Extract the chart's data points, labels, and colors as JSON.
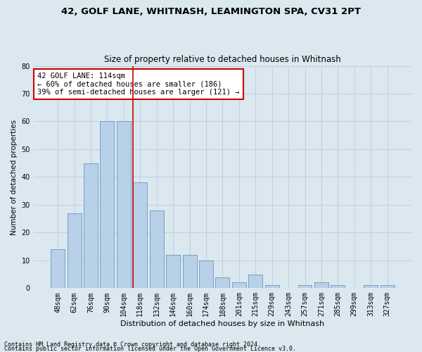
{
  "title1": "42, GOLF LANE, WHITNASH, LEAMINGTON SPA, CV31 2PT",
  "title2": "Size of property relative to detached houses in Whitnash",
  "xlabel": "Distribution of detached houses by size in Whitnash",
  "ylabel": "Number of detached properties",
  "bar_labels": [
    "48sqm",
    "62sqm",
    "76sqm",
    "90sqm",
    "104sqm",
    "118sqm",
    "132sqm",
    "146sqm",
    "160sqm",
    "174sqm",
    "188sqm",
    "201sqm",
    "215sqm",
    "229sqm",
    "243sqm",
    "257sqm",
    "271sqm",
    "285sqm",
    "299sqm",
    "313sqm",
    "327sqm"
  ],
  "bar_values": [
    14,
    27,
    45,
    60,
    60,
    38,
    28,
    12,
    12,
    10,
    4,
    2,
    5,
    1,
    0,
    1,
    2,
    1,
    0,
    1,
    1
  ],
  "bar_color": "#b8d0e8",
  "bar_edge_color": "#6699bb",
  "vline_x": 4.57,
  "annotation_text": "42 GOLF LANE: 114sqm\n← 60% of detached houses are smaller (186)\n39% of semi-detached houses are larger (121) →",
  "annotation_box_color": "white",
  "annotation_box_edge_color": "#cc0000",
  "vline_color": "#cc0000",
  "ylim": [
    0,
    80
  ],
  "yticks": [
    0,
    10,
    20,
    30,
    40,
    50,
    60,
    70,
    80
  ],
  "grid_color": "#c0cfe0",
  "bg_color": "#dce8f0",
  "footer1": "Contains HM Land Registry data © Crown copyright and database right 2024.",
  "footer2": "Contains public sector information licensed under the Open Government Licence v3.0.",
  "title1_fontsize": 9.5,
  "title2_fontsize": 8.5,
  "xlabel_fontsize": 8,
  "ylabel_fontsize": 7.5,
  "tick_fontsize": 7,
  "annotation_fontsize": 7.5,
  "footer_fontsize": 6
}
